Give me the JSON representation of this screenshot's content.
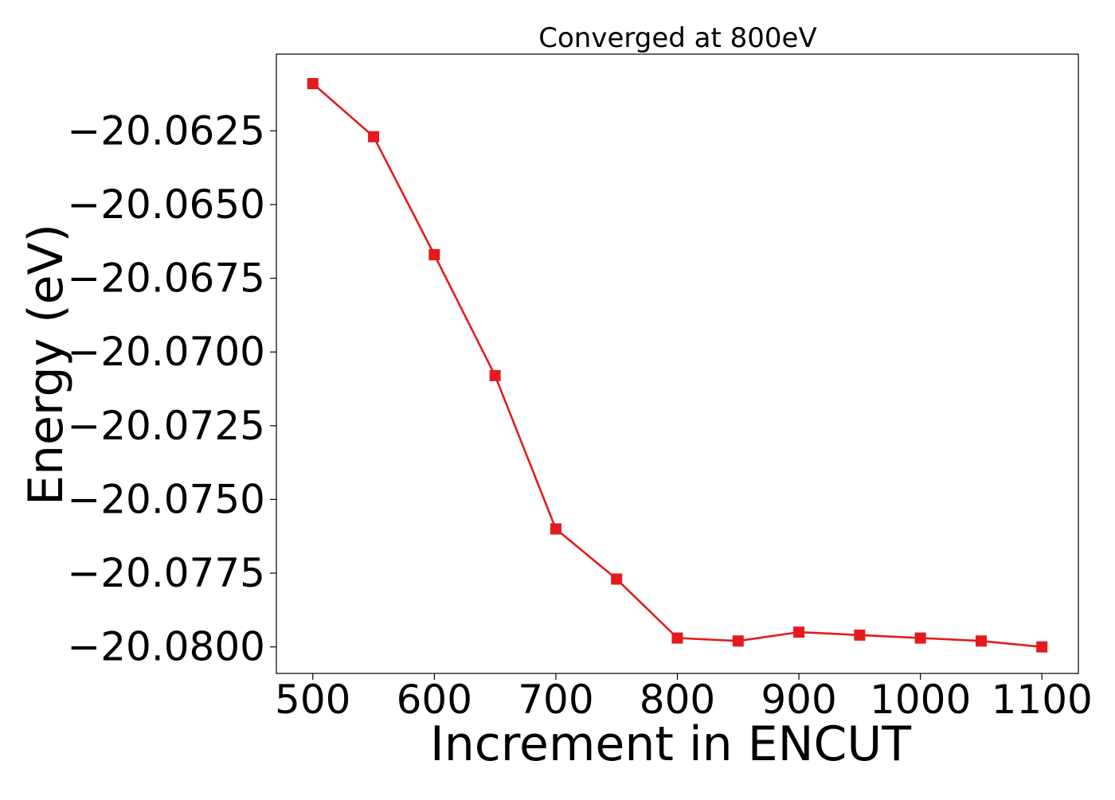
{
  "chart_data": {
    "type": "line",
    "title": "Converged at 800eV",
    "xlabel": "Increment in ENCUT",
    "ylabel": "Energy (eV)",
    "x": [
      500,
      550,
      600,
      650,
      700,
      750,
      800,
      850,
      900,
      950,
      1000,
      1050,
      1100
    ],
    "series": [
      {
        "values": [
          -20.0609,
          -20.0627,
          -20.0667,
          -20.0708,
          -20.076,
          -20.0777,
          -20.0797,
          -20.0798,
          -20.0795,
          -20.0796,
          -20.0797,
          -20.0798,
          -20.08
        ],
        "color": "#e41a1c",
        "marker": "square"
      }
    ],
    "xlim": [
      470,
      1130
    ],
    "ylim": [
      -20.0809,
      -20.0599
    ],
    "xticks": [
      500,
      600,
      700,
      800,
      900,
      1000,
      1100
    ],
    "xtick_labels": [
      "500",
      "600",
      "700",
      "800",
      "900",
      "1000",
      "1100"
    ],
    "yticks": [
      -20.0625,
      -20.065,
      -20.0675,
      -20.07,
      -20.0725,
      -20.075,
      -20.0775,
      -20.08
    ],
    "ytick_labels": [
      "−20.0625",
      "−20.0650",
      "−20.0675",
      "−20.0700",
      "−20.0725",
      "−20.0750",
      "−20.0775",
      "−20.0800"
    ],
    "grid": false,
    "legend": "none"
  }
}
